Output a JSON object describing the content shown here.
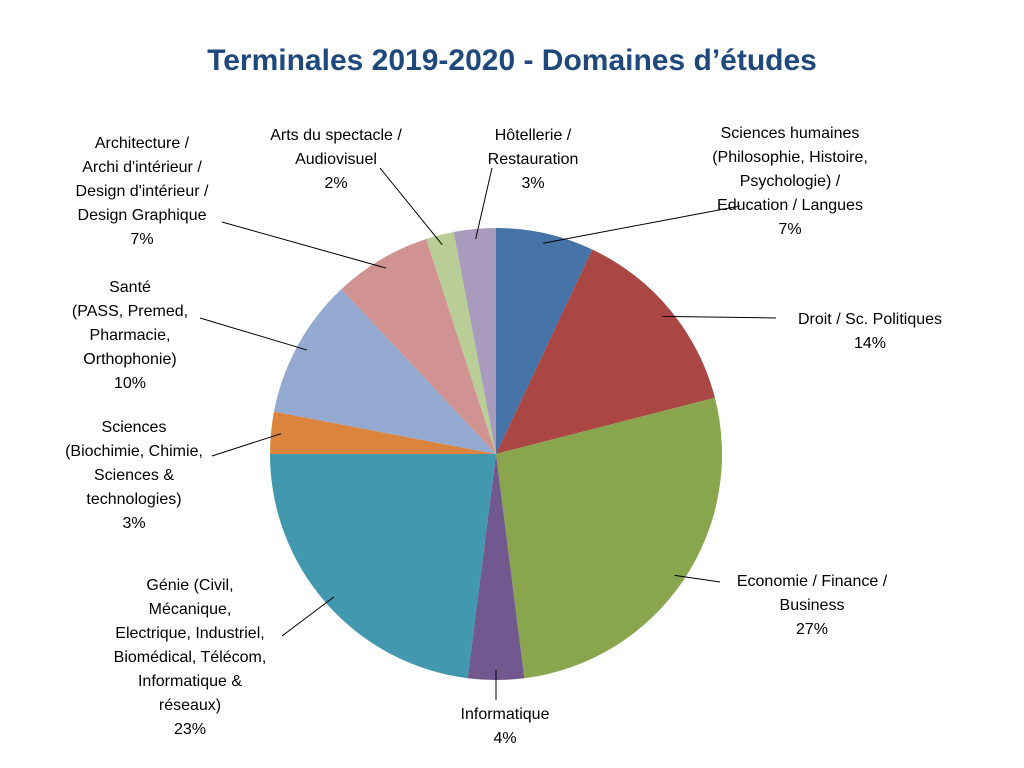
{
  "chart_data": {
    "type": "pie",
    "title": "Terminales 2019-2020 - Domaines d’études",
    "slices": [
      {
        "label": [
          "Sciences humaines",
          "(Philosophie, Histoire,",
          "Psychologie) /",
          "Education / Langues"
        ],
        "value": 7,
        "pct": "7%",
        "color": "#4572A7"
      },
      {
        "label": [
          "Droit / Sc. Politiques"
        ],
        "value": 14,
        "pct": "14%",
        "color": "#AA4643"
      },
      {
        "label": [
          "Economie / Finance /",
          "Business"
        ],
        "value": 27,
        "pct": "27%",
        "color": "#89A54E"
      },
      {
        "label": [
          "Informatique"
        ],
        "value": 4,
        "pct": "4%",
        "color": "#71588F"
      },
      {
        "label": [
          "Génie (Civil,",
          "Mécanique,",
          "Electrique, Industriel,",
          "Biomédical, Télécom,",
          "Informatique &",
          "réseaux)"
        ],
        "value": 23,
        "pct": "23%",
        "color": "#4198AF"
      },
      {
        "label": [
          "Sciences",
          "(Biochimie, Chimie,",
          "Sciences &",
          "technologies)"
        ],
        "value": 3,
        "pct": "3%",
        "color": "#DB843D"
      },
      {
        "label": [
          "Santé",
          "(PASS, Premed,",
          "Pharmacie,",
          "Orthophonie)"
        ],
        "value": 10,
        "pct": "10%",
        "color": "#93A9CF"
      },
      {
        "label": [
          "Architecture /",
          "Archi d'intérieur /",
          "Design d'intérieur /",
          "Design Graphique"
        ],
        "value": 7,
        "pct": "7%",
        "color": "#D19392"
      },
      {
        "label": [
          "Arts du spectacle /",
          "Audiovisuel"
        ],
        "value": 2,
        "pct": "2%",
        "color": "#B9CD96"
      },
      {
        "label": [
          "Hôtellerie /",
          "Restauration"
        ],
        "value": 3,
        "pct": "3%",
        "color": "#A99BBD"
      }
    ]
  }
}
